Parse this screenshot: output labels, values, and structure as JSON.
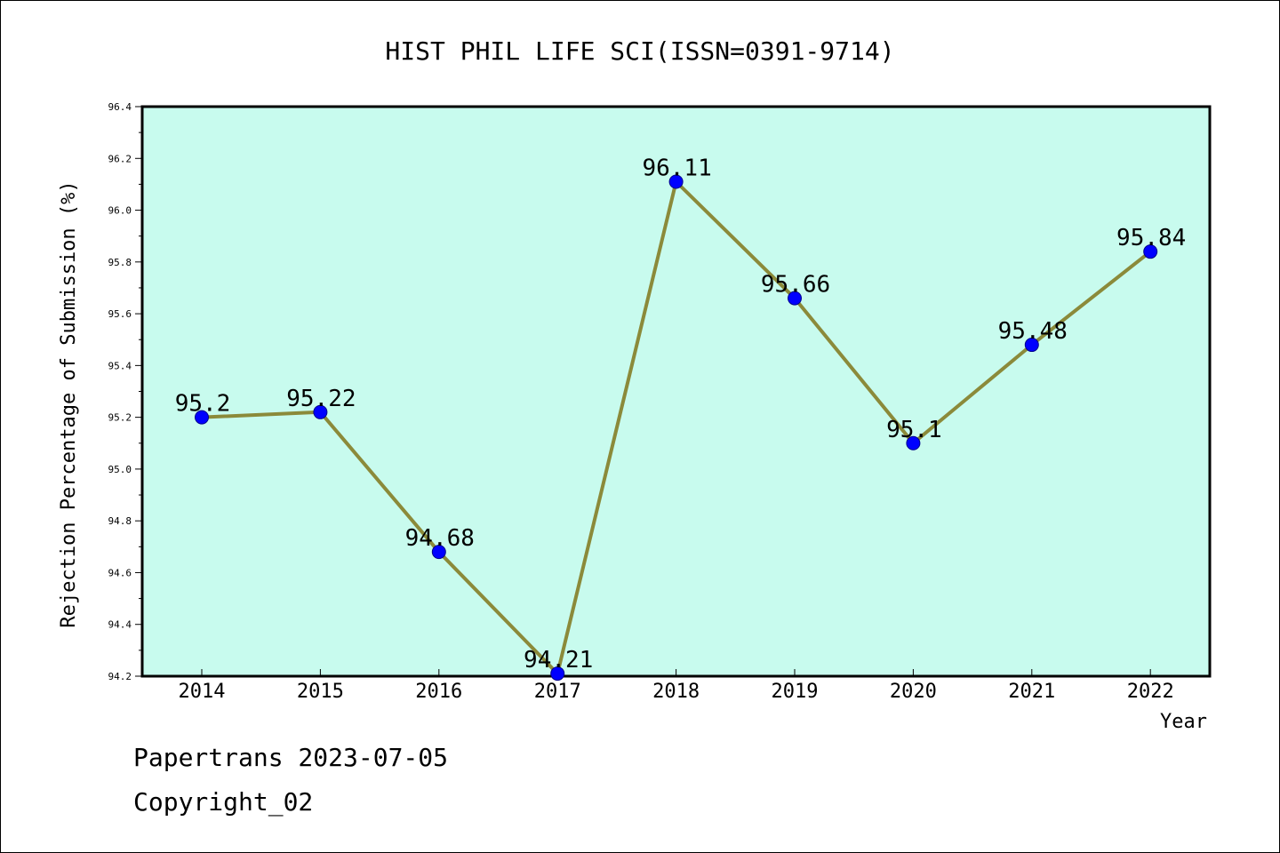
{
  "chart_data": {
    "type": "line",
    "title": "HIST PHIL LIFE SCI(ISSN=0391-9714)",
    "xlabel": "Year",
    "ylabel": "Rejection Percentage of Submission (%)",
    "categories": [
      "2014",
      "2015",
      "2016",
      "2017",
      "2018",
      "2019",
      "2020",
      "2021",
      "2022"
    ],
    "values": [
      95.2,
      95.22,
      94.68,
      94.21,
      96.11,
      95.66,
      95.1,
      95.48,
      95.84
    ],
    "data_labels": [
      "95.2",
      "95.22",
      "94.68",
      "94.21",
      "96.11",
      "95.66",
      "95.1",
      "95.48",
      "95.84"
    ],
    "ylim": [
      94.2,
      96.4
    ],
    "yticks": [
      "94.2",
      "94.4",
      "94.6",
      "94.8",
      "95.0",
      "95.2",
      "95.4",
      "95.6",
      "95.8",
      "96.0",
      "96.2",
      "96.4"
    ],
    "grid": false,
    "colors": {
      "plot_background": "#c8fbee",
      "line": "#8b8a3a",
      "marker": "#0000ff"
    }
  },
  "footer": {
    "line1": "Papertrans 2023-07-05",
    "line2": "Copyright_02"
  }
}
